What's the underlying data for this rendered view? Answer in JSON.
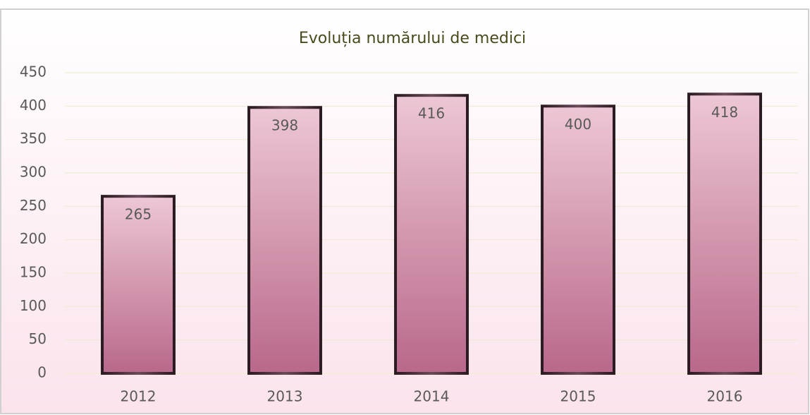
{
  "chart_data": {
    "type": "bar",
    "title": "Evoluția numărului de medici",
    "categories": [
      "2012",
      "2013",
      "2014",
      "2015",
      "2016"
    ],
    "values": [
      265,
      398,
      416,
      400,
      418
    ],
    "color": "#c77f9c",
    "ylim": [
      0,
      450
    ],
    "yticks": [
      0,
      50,
      100,
      150,
      200,
      250,
      300,
      350,
      400,
      450
    ],
    "grid": true
  }
}
